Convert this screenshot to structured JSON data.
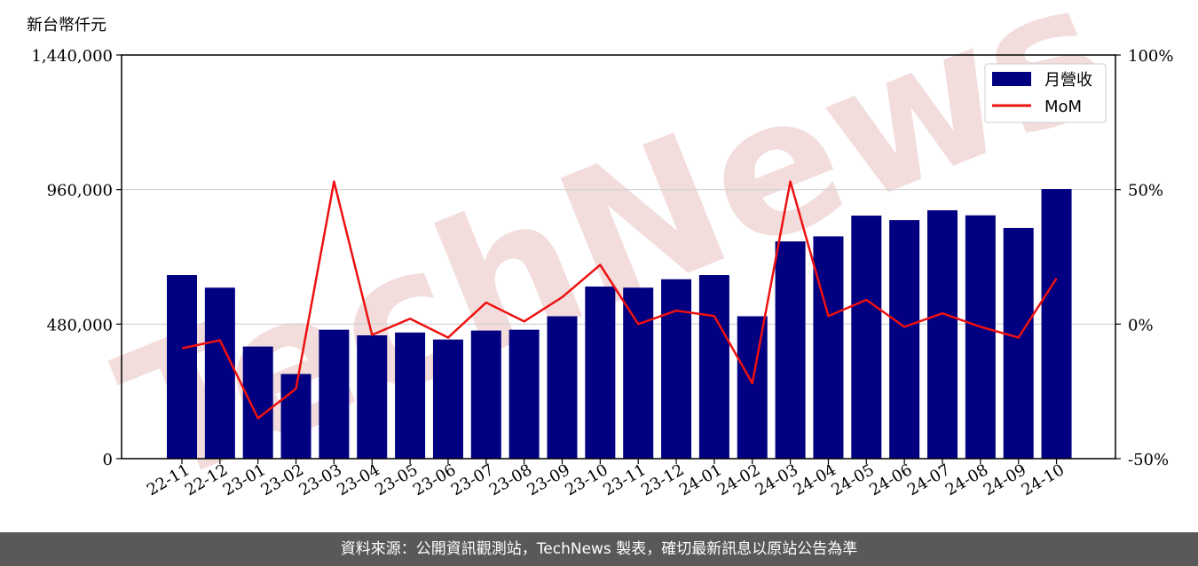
{
  "unit_label": "新台幣仟元",
  "footer_text": "資料來源：公開資訊觀測站，TechNews 製表，確切最新訊息以原站公告為準",
  "watermark_text": "TechNews",
  "colors": {
    "bar": "#000080",
    "line": "#ee1111",
    "grid": "#d0d0d0",
    "watermark": "#f2d7d7"
  },
  "chart_data": {
    "type": "bar",
    "categories": [
      "22-11",
      "22-12",
      "23-01",
      "23-02",
      "23-03",
      "23-04",
      "23-05",
      "23-06",
      "23-07",
      "23-08",
      "23-09",
      "23-10",
      "23-11",
      "23-12",
      "24-01",
      "24-02",
      "24-03",
      "24-04",
      "24-05",
      "24-06",
      "24-07",
      "24-08",
      "24-09",
      "24-10"
    ],
    "series": [
      {
        "name": "月營收",
        "type": "bar",
        "axis": "left",
        "values": [
          655000,
          610000,
          400000,
          302000,
          460000,
          440000,
          450000,
          425000,
          457000,
          460000,
          508000,
          614000,
          610000,
          640000,
          655000,
          508000,
          775000,
          793000,
          867000,
          851000,
          886000,
          868000,
          823000,
          962000
        ]
      },
      {
        "name": "MoM",
        "type": "line",
        "axis": "right",
        "unit": "%",
        "values": [
          -9,
          -6,
          -35,
          -24,
          53,
          -4,
          2,
          -5,
          8,
          1,
          10,
          22,
          0,
          5,
          3,
          -22,
          53,
          3,
          9,
          -1,
          4,
          -1,
          -5,
          17
        ]
      }
    ],
    "y_left": {
      "lim": [
        0,
        1440000
      ],
      "ticks": [
        "0",
        "480,000",
        "960,000",
        "1,440,000"
      ],
      "tick_values": [
        0,
        480000,
        960000,
        1440000
      ]
    },
    "y_right": {
      "lim": [
        -50,
        100
      ],
      "ticks": [
        "-50%",
        "0%",
        "50%",
        "100%"
      ],
      "tick_values": [
        -50,
        0,
        50,
        100
      ]
    },
    "grid": "horizontal",
    "legend_position": "top-right"
  }
}
